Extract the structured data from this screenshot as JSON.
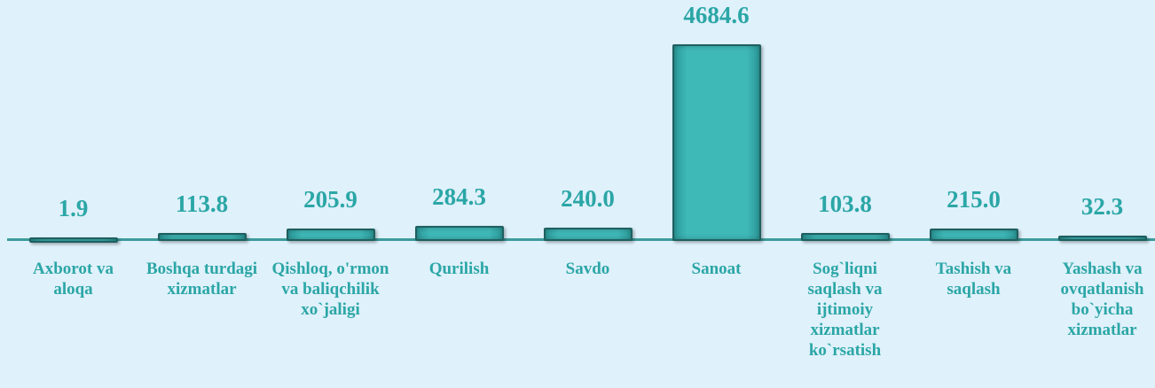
{
  "chart_data": {
    "type": "bar",
    "categories": [
      "Axborot va aloqa",
      "Boshqa turdagi xizmatlar",
      "Qishloq, o'rmon va baliqchilik xo`jaligi",
      "Qurilish",
      "Savdo",
      "Sanoat",
      "Sog`liqni saqlash va ijtimoiy xizmatlar ko`rsatish",
      "Tashish va saqlash",
      "Yashash va ovqatlanish bo`yicha xizmatlar"
    ],
    "values": [
      1.9,
      113.8,
      205.9,
      284.3,
      240.0,
      4684.6,
      103.8,
      215.0,
      32.3
    ],
    "value_labels": [
      "1.9",
      "113.8",
      "205.9",
      "284.3",
      "240.0",
      "4684.6",
      "103.8",
      "215.0",
      "32.3"
    ],
    "color": "#3fb8b8"
  }
}
